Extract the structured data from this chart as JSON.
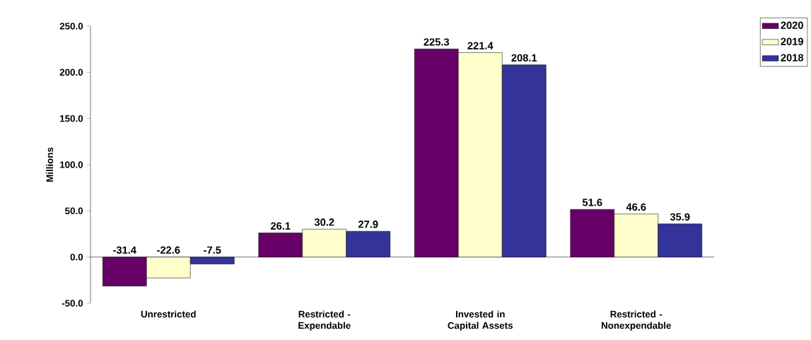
{
  "chart_data": {
    "type": "bar",
    "ylabel": "Millions",
    "categories": [
      "Unrestricted",
      "Restricted - Expendable",
      "Invested in Capital Assets",
      "Restricted - Nonexpendable"
    ],
    "series": [
      {
        "name": "2020",
        "color": "#660066",
        "values": [
          -31.4,
          26.1,
          225.3,
          51.6
        ]
      },
      {
        "name": "2019",
        "color": "#ffffcc",
        "values": [
          -22.6,
          30.2,
          221.4,
          46.6
        ]
      },
      {
        "name": "2018",
        "color": "#333399",
        "values": [
          -7.5,
          27.9,
          208.1,
          35.9
        ]
      }
    ],
    "ylim": [
      -50,
      250
    ],
    "yticks": [
      {
        "value": -50,
        "label": "-50.0"
      },
      {
        "value": 0,
        "label": "0.0"
      },
      {
        "value": 50,
        "label": "50.0"
      },
      {
        "value": 100,
        "label": "100.0"
      },
      {
        "value": 150,
        "label": "150.0"
      },
      {
        "value": 200,
        "label": "200.0"
      },
      {
        "value": 250,
        "label": "250.0"
      }
    ],
    "data_labels": true,
    "legend": "top right"
  }
}
